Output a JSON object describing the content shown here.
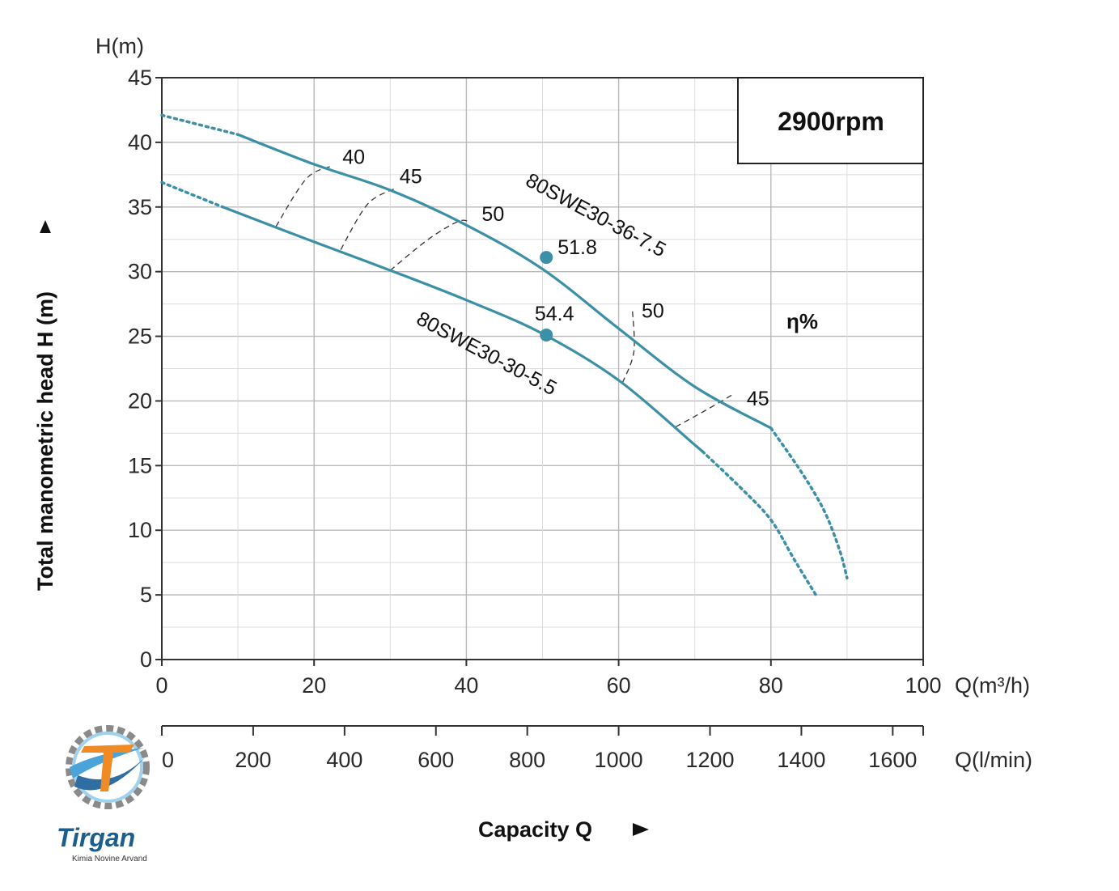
{
  "chart_data": {
    "type": "line",
    "rpm_box": "2900rpm",
    "ylabel": "Total manometric head H (m)",
    "y_unit": "H(m)",
    "ylim": [
      0,
      45
    ],
    "y_ticks": [
      0,
      5,
      10,
      15,
      20,
      25,
      30,
      35,
      40,
      45
    ],
    "xlabel": "Capacity Q",
    "x_unit_m3h": "Q(m³/h)",
    "xlim": [
      0,
      100
    ],
    "x_ticks": [
      0,
      20,
      40,
      60,
      80,
      100
    ],
    "x2_unit": "Q(l/min)",
    "x2lim": [
      0,
      1666.7
    ],
    "x2_ticks": [
      0,
      200,
      400,
      600,
      800,
      1000,
      1200,
      1400,
      1600
    ],
    "efficiency_title": "η%",
    "grid": true,
    "series": [
      {
        "name": "80SWE30-36-7.5",
        "color": "#3b8fa6",
        "solid": [
          [
            10,
            40.6
          ],
          [
            20,
            38.3
          ],
          [
            30,
            36.3
          ],
          [
            40,
            33.6
          ],
          [
            50,
            30.2
          ],
          [
            60,
            25.6
          ],
          [
            70,
            21.1
          ],
          [
            80,
            17.9
          ]
        ],
        "dotted_start": [
          [
            0,
            42.1
          ],
          [
            10,
            40.6
          ]
        ],
        "dotted_end": [
          [
            80,
            17.9
          ],
          [
            84,
            14.5
          ],
          [
            87,
            11.5
          ],
          [
            89,
            8.5
          ],
          [
            90,
            6.3
          ]
        ],
        "bep": {
          "x": 50.5,
          "y": 31.1,
          "label": "51.8"
        }
      },
      {
        "name": "80SWE30-30-5.5",
        "color": "#3b8fa6",
        "solid": [
          [
            8,
            35.0
          ],
          [
            20,
            32.3
          ],
          [
            30,
            30.1
          ],
          [
            40,
            27.8
          ],
          [
            50,
            25.2
          ],
          [
            60,
            21.6
          ],
          [
            70,
            16.6
          ],
          [
            71,
            16.1
          ]
        ],
        "dotted_start": [
          [
            0,
            36.9
          ],
          [
            8,
            35.0
          ]
        ],
        "dotted_end": [
          [
            71,
            16.1
          ],
          [
            76,
            13.3
          ],
          [
            80,
            10.8
          ],
          [
            83,
            7.8
          ],
          [
            86,
            4.9
          ]
        ],
        "bep": {
          "x": 50.5,
          "y": 25.1,
          "label": "54.4"
        }
      }
    ],
    "efficiency_isolines": [
      {
        "label": "40",
        "points": [
          [
            15,
            33.5
          ],
          [
            19,
            37.2
          ],
          [
            22.5,
            38.2
          ]
        ],
        "label_at": [
          25.2,
          38.9
        ]
      },
      {
        "label": "45",
        "points": [
          [
            23.5,
            31.7
          ],
          [
            27,
            35.2
          ],
          [
            30.5,
            36.4
          ]
        ],
        "label_at": [
          32.7,
          37.4
        ]
      },
      {
        "label": "50",
        "points": [
          [
            30,
            30.1
          ],
          [
            35,
            32.5
          ],
          [
            39,
            33.9
          ],
          [
            40.5,
            33.8
          ]
        ],
        "label_at": [
          43.5,
          34.5
        ]
      },
      {
        "label": "50",
        "points": [
          [
            60.5,
            21.4
          ],
          [
            62,
            23.8
          ],
          [
            61.8,
            27.1
          ]
        ],
        "label_at": [
          64.5,
          27.0
        ]
      },
      {
        "label": "45",
        "points": [
          [
            67.5,
            18.0
          ],
          [
            71.5,
            19.3
          ],
          [
            75,
            20.5
          ]
        ],
        "label_at": [
          78.3,
          20.2
        ]
      }
    ]
  },
  "logo": {
    "name": "Tirgan",
    "tagline": "Kimia Novine Arvand"
  }
}
